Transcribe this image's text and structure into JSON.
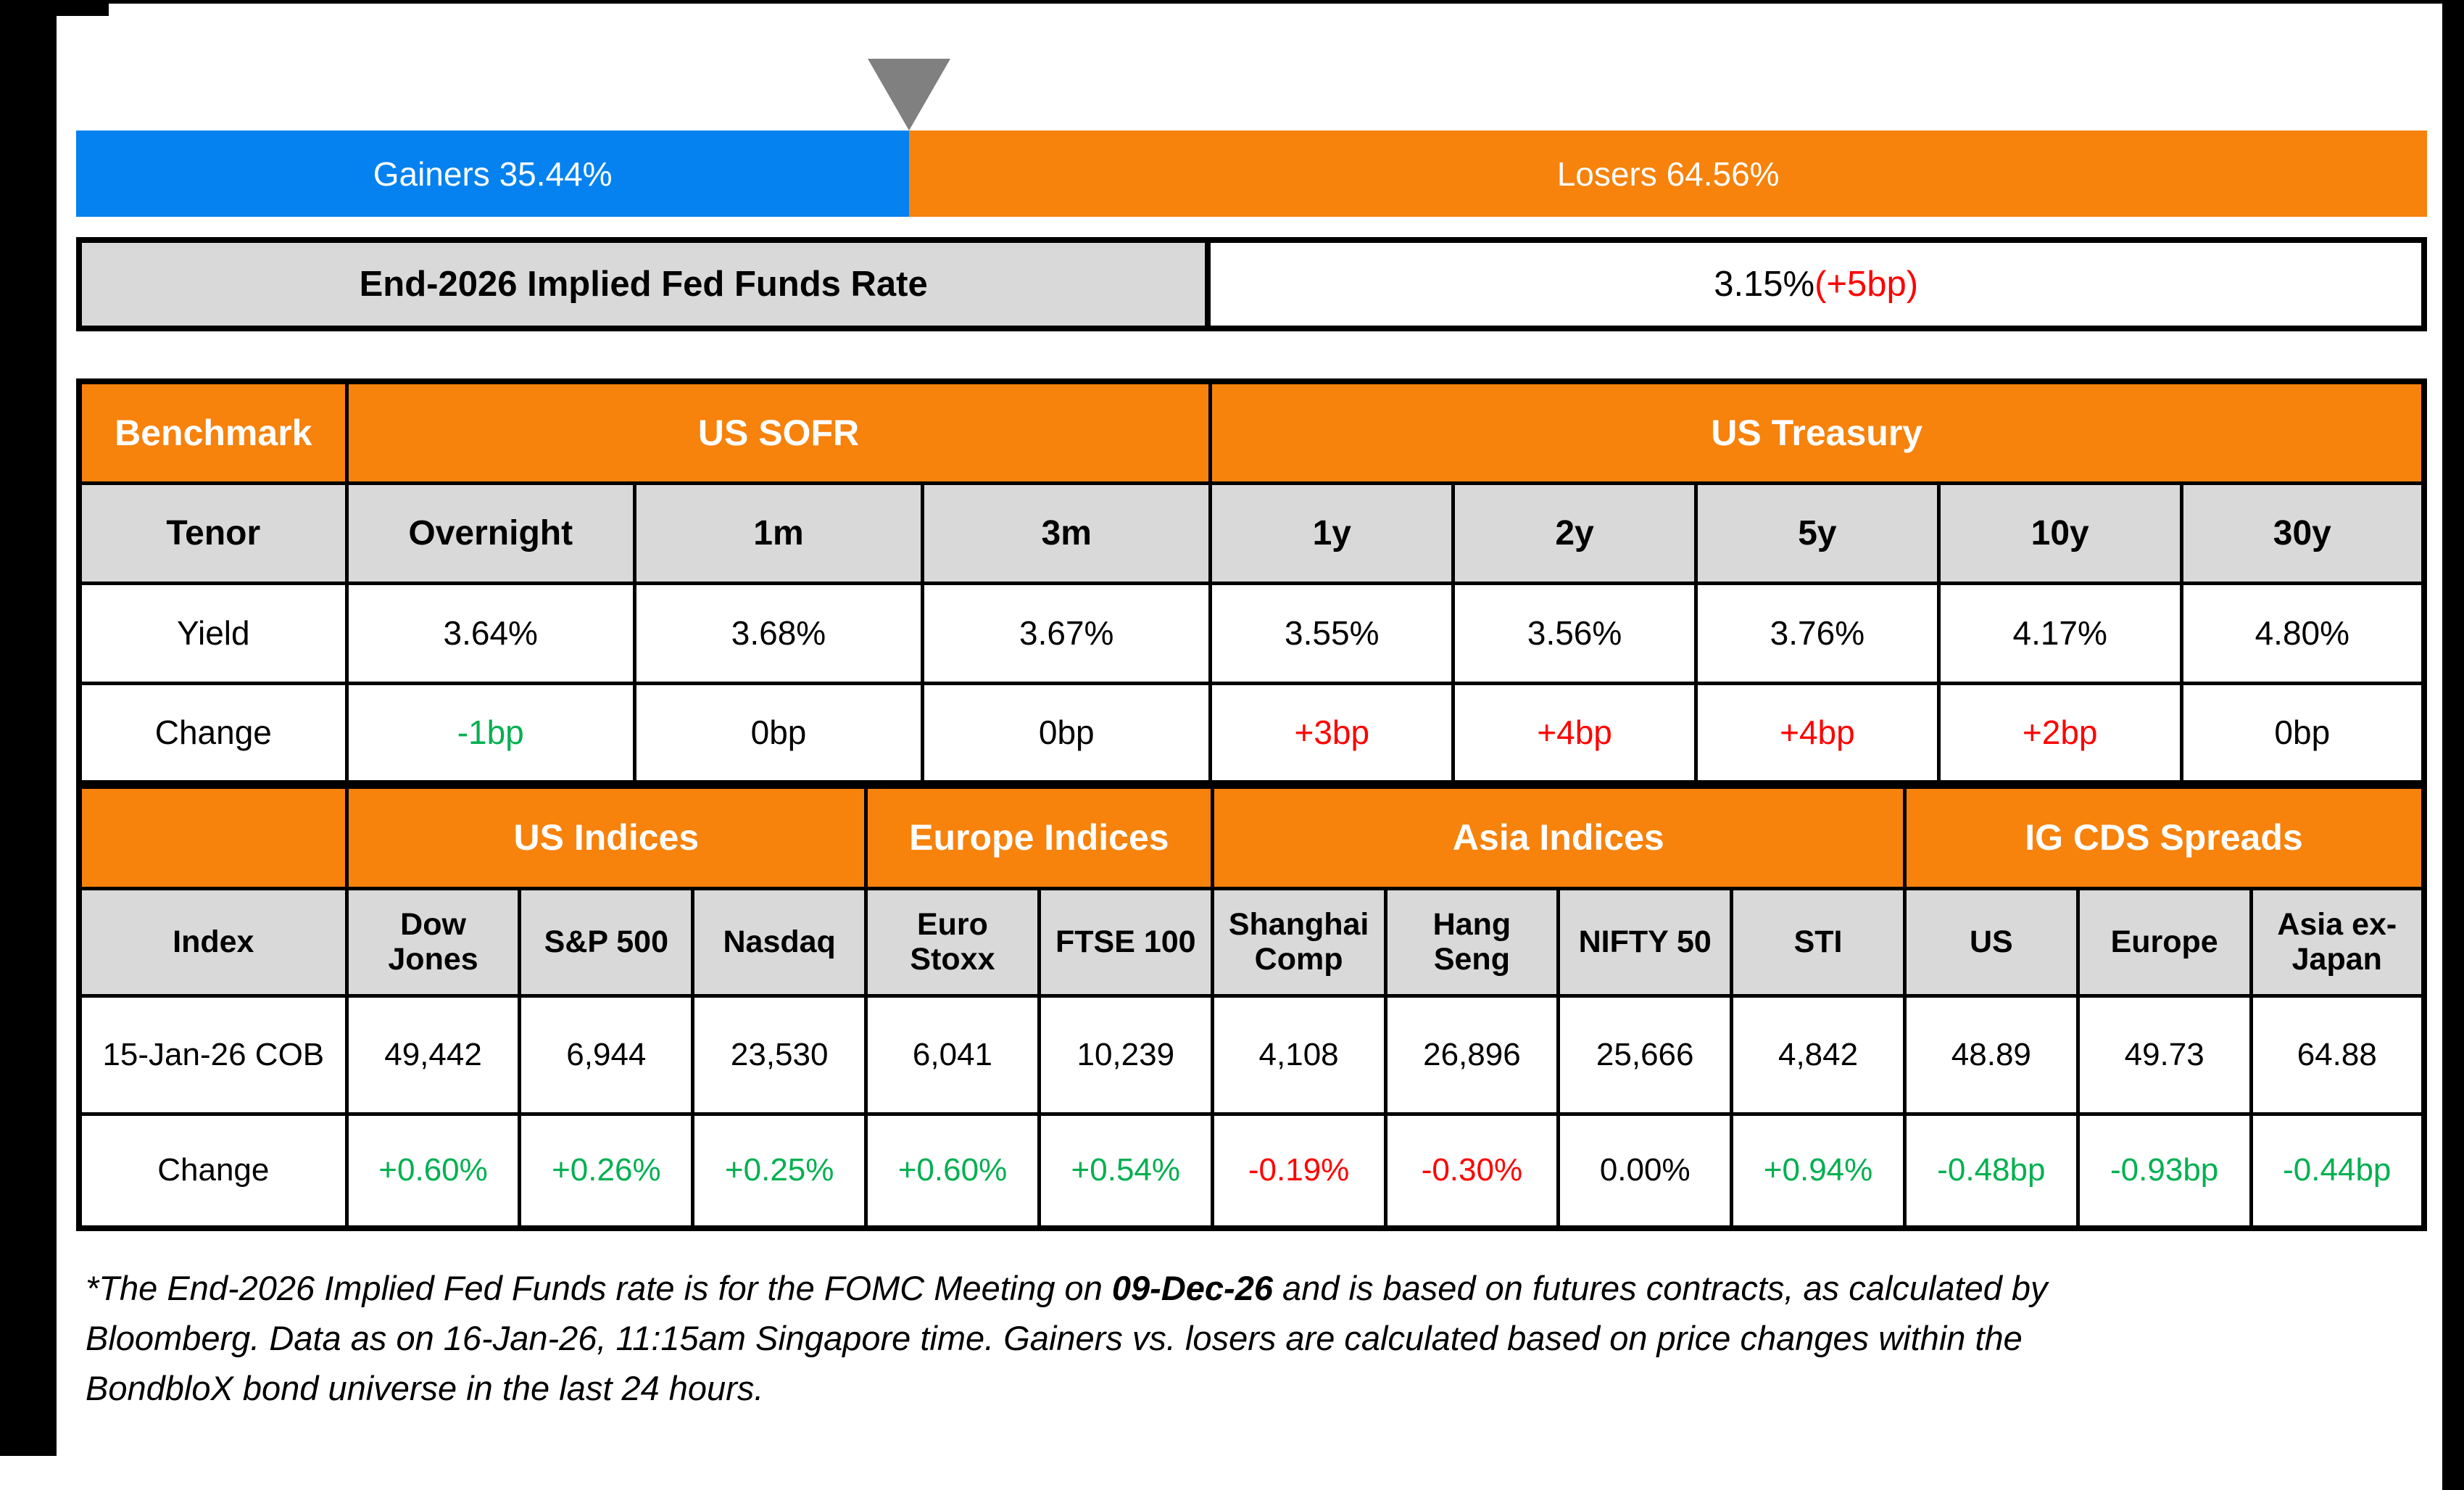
{
  "palette": {
    "bar_blue": "#0582F0",
    "bar_orange": "#F7820C",
    "header_orange": "#F7820C",
    "cell_gray": "#D9D9D9",
    "positive_green": "#00B050",
    "negative_red": "#FF0000",
    "marker_gray": "#808080"
  },
  "gainers_losers_bar": {
    "gainers_label": "Gainers 35.44%",
    "gainers_pct": 35.44,
    "losers_label": "Losers 64.56%",
    "losers_pct": 64.56
  },
  "fed_funds": {
    "label": "End-2026 Implied Fed Funds Rate",
    "value": "3.15%",
    "change": " (+5bp)"
  },
  "benchmark_table": {
    "corner_label": "Benchmark",
    "groups": [
      "US SOFR",
      "US Treasury"
    ],
    "tenor_label": "Tenor",
    "tenors": [
      "Overnight",
      "1m",
      "3m",
      "1y",
      "2y",
      "5y",
      "10y",
      "30y"
    ],
    "yield_label": "Yield",
    "yields": [
      "3.64%",
      "3.68%",
      "3.67%",
      "3.55%",
      "3.56%",
      "3.76%",
      "4.17%",
      "4.80%"
    ],
    "change_label": "Change",
    "changes": [
      "-1bp",
      "0bp",
      "0bp",
      "+3bp",
      "+4bp",
      "+4bp",
      "+2bp",
      "0bp"
    ]
  },
  "indices_table": {
    "groups": [
      "US Indices",
      "Europe Indices",
      "Asia Indices",
      "IG CDS Spreads"
    ],
    "index_label": "Index",
    "columns": [
      "Dow Jones",
      "S&P 500",
      "Nasdaq",
      "Euro Stoxx",
      "FTSE 100",
      "Shanghai Comp",
      "Hang Seng",
      "NIFTY 50",
      "STI",
      "US",
      "Europe",
      "Asia ex-Japan"
    ],
    "cob_label": "15-Jan-26 COB",
    "cob_values": [
      "49,442",
      "6,944",
      "23,530",
      "6,041",
      "10,239",
      "4,108",
      "26,896",
      "25,666",
      "4,842",
      "48.89",
      "49.73",
      "64.88"
    ],
    "change_label": "Change",
    "changes": [
      "+0.60%",
      "+0.26%",
      "+0.25%",
      "+0.60%",
      "+0.54%",
      "-0.19%",
      "-0.30%",
      "0.00%",
      "+0.94%",
      "-0.48bp",
      "-0.93bp",
      "-0.44bp"
    ]
  },
  "chart_data": {
    "type": "bar",
    "categories": [
      "Gainers",
      "Losers"
    ],
    "values": [
      35.44,
      64.56
    ],
    "title": "Gainers vs Losers (%)"
  },
  "footnote": {
    "line1_pre": "*The End-2026 Implied Fed Funds rate is for the FOMC Meeting on ",
    "line1_bold": "09-Dec-26",
    "line1_post": " and is based on futures contracts, as calculated by",
    "line2": "Bloomberg. Data as on 16-Jan-26, 11:15am Singapore time. Gainers vs. losers are calculated based on price changes within the",
    "line3": "BondbloX bond universe in the last 24 hours."
  }
}
